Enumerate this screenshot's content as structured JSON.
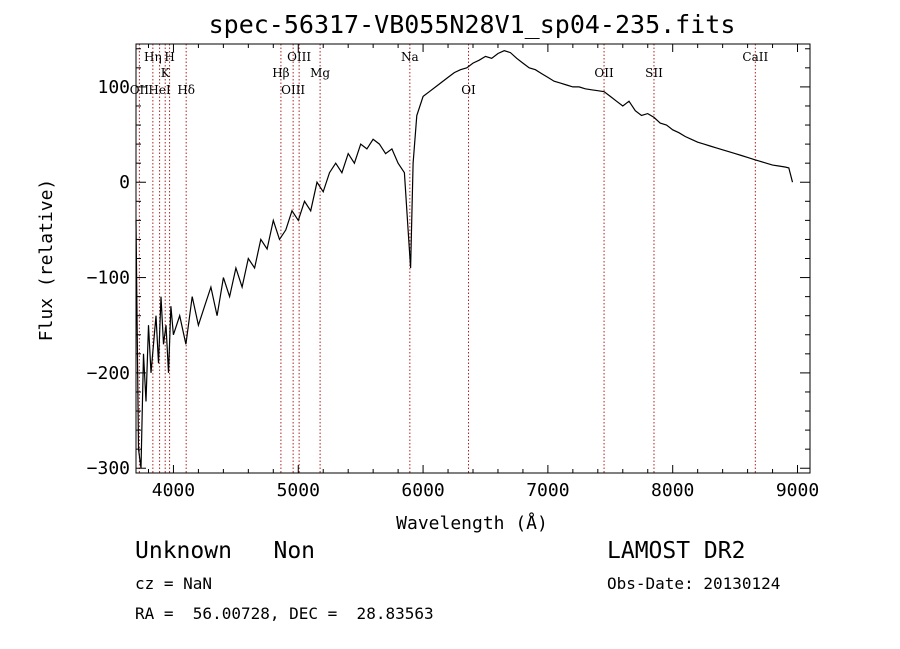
{
  "chart_data": {
    "type": "line",
    "title": "spec-56317-VB055N28V1_sp04-235.fits",
    "xlabel": "Wavelength (Å)",
    "ylabel": "Flux (relative)",
    "xlim": [
      3700,
      9100
    ],
    "ylim": [
      -305,
      145
    ],
    "x_ticks": [
      4000,
      5000,
      6000,
      7000,
      8000,
      9000
    ],
    "x_tick_labels": [
      "4000",
      "5000",
      "6000",
      "7000",
      "8000",
      "9000"
    ],
    "y_ticks": [
      -300,
      -200,
      -100,
      0,
      100
    ],
    "y_tick_labels": [
      "−300",
      "−200",
      "−100",
      "0",
      "100"
    ],
    "grid": false,
    "line_color": "#000000",
    "marker_color": "#b22222",
    "series": [
      {
        "x": [
          3700,
          3720,
          3740,
          3760,
          3780,
          3800,
          3820,
          3840,
          3860,
          3880,
          3900,
          3920,
          3940,
          3960,
          3980,
          4000,
          4050,
          4100,
          4150,
          4200,
          4250,
          4300,
          4350,
          4400,
          4450,
          4500,
          4550,
          4600,
          4650,
          4700,
          4750,
          4800,
          4850,
          4900,
          4950,
          5000,
          5050,
          5100,
          5150,
          5200,
          5250,
          5300,
          5350,
          5400,
          5450,
          5500,
          5550,
          5600,
          5650,
          5700,
          5750,
          5800,
          5850,
          5880,
          5900,
          5920,
          5950,
          6000,
          6050,
          6100,
          6150,
          6200,
          6250,
          6300,
          6350,
          6400,
          6450,
          6500,
          6550,
          6600,
          6650,
          6700,
          6750,
          6800,
          6850,
          6900,
          6950,
          7000,
          7050,
          7100,
          7150,
          7200,
          7250,
          7300,
          7350,
          7400,
          7450,
          7500,
          7550,
          7600,
          7650,
          7700,
          7750,
          7800,
          7850,
          7900,
          7950,
          8000,
          8050,
          8100,
          8150,
          8200,
          8250,
          8300,
          8350,
          8400,
          8450,
          8500,
          8550,
          8600,
          8650,
          8700,
          8750,
          8800,
          8850,
          8900,
          8930,
          8960
        ],
        "y": [
          -40,
          -280,
          -300,
          -180,
          -230,
          -150,
          -200,
          -170,
          -140,
          -190,
          -120,
          -170,
          -150,
          -200,
          -130,
          -160,
          -140,
          -170,
          -120,
          -150,
          -130,
          -110,
          -140,
          -100,
          -120,
          -90,
          -110,
          -80,
          -90,
          -60,
          -70,
          -40,
          -60,
          -50,
          -30,
          -40,
          -20,
          -30,
          0,
          -10,
          10,
          20,
          10,
          30,
          20,
          40,
          35,
          45,
          40,
          30,
          35,
          20,
          10,
          -50,
          -90,
          20,
          70,
          90,
          95,
          100,
          105,
          110,
          115,
          118,
          120,
          125,
          128,
          132,
          130,
          135,
          138,
          136,
          130,
          125,
          120,
          118,
          114,
          110,
          106,
          104,
          102,
          100,
          100,
          98,
          97,
          96,
          95,
          90,
          85,
          80,
          85,
          75,
          70,
          72,
          68,
          62,
          60,
          55,
          52,
          48,
          45,
          42,
          40,
          38,
          36,
          34,
          32,
          30,
          28,
          26,
          24,
          22,
          20,
          18,
          17,
          16,
          15,
          0
        ]
      }
    ],
    "line_markers": [
      {
        "label": "OII",
        "x": 3727,
        "row": 3
      },
      {
        "label": "Hη",
        "x": 3835,
        "row": 0
      },
      {
        "label": "HeI",
        "x": 3889,
        "row": 3
      },
      {
        "label": "K",
        "x": 3934,
        "row": 1
      },
      {
        "label": "H",
        "x": 3969,
        "row": 0
      },
      {
        "label": "Hδ",
        "x": 4102,
        "row": 3
      },
      {
        "label": "Hβ",
        "x": 4861,
        "row": 2
      },
      {
        "label": "OIII",
        "x": 4959,
        "row": 3
      },
      {
        "label": "OIII",
        "x": 5007,
        "row": 0
      },
      {
        "label": "Mg",
        "x": 5175,
        "row": 2
      },
      {
        "label": "Na",
        "x": 5894,
        "row": 0
      },
      {
        "label": "OI",
        "x": 6364,
        "row": 3
      },
      {
        "label": "OII",
        "x": 7450,
        "row": 2
      },
      {
        "label": "SII",
        "x": 7850,
        "row": 2
      },
      {
        "label": "CaII",
        "x": 8662,
        "row": 0
      }
    ]
  },
  "info": {
    "class_text": "Unknown   Non",
    "survey": "LAMOST DR2",
    "cz": "cz = NaN",
    "obs_date": "Obs-Date: 20130124",
    "coords": "RA =  56.00728, DEC =  28.83563"
  }
}
